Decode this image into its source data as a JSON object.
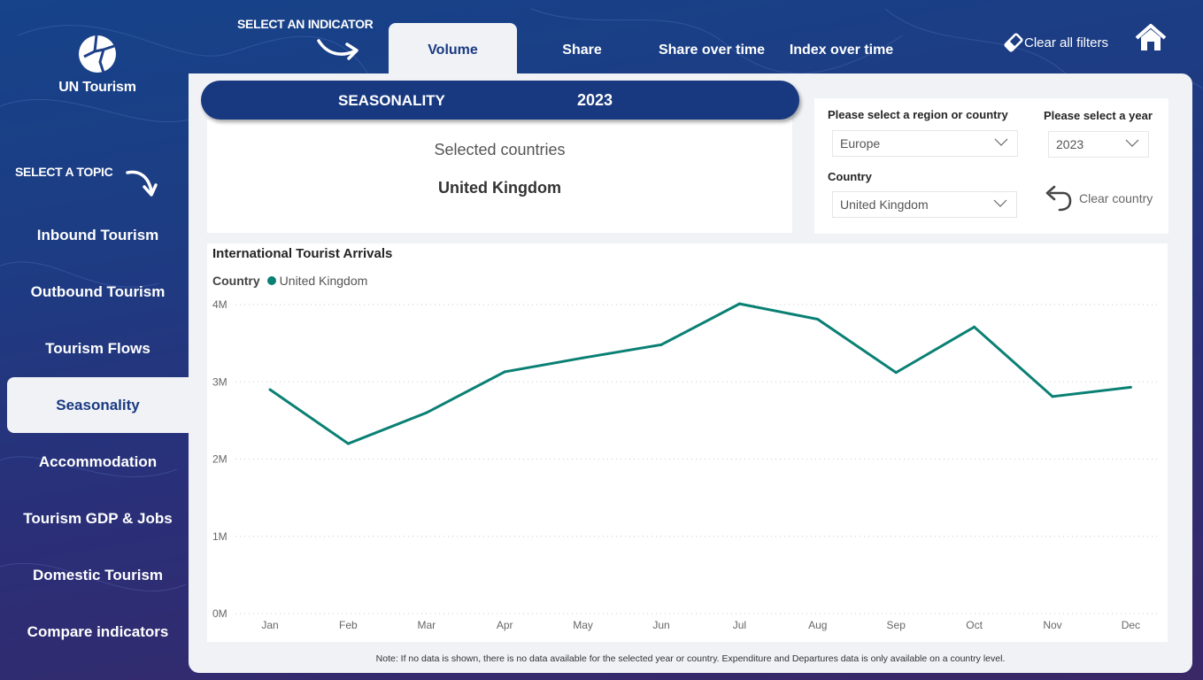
{
  "brand": {
    "name": "UN Tourism"
  },
  "hints": {
    "indicator": "SELECT AN INDICATOR",
    "topic": "SELECT A TOPIC"
  },
  "indicator_tabs": [
    {
      "label": "Volume",
      "active": true
    },
    {
      "label": "Share",
      "active": false
    },
    {
      "label": "Share over time",
      "active": false
    },
    {
      "label": "Index over time",
      "active": false
    }
  ],
  "header_actions": {
    "clear_all_filters": "Clear all filters",
    "home_icon": "home-icon",
    "eraser_icon": "eraser-icon"
  },
  "sidebar": {
    "items": [
      {
        "label": "Inbound Tourism",
        "active": false
      },
      {
        "label": "Outbound Tourism",
        "active": false
      },
      {
        "label": "Tourism Flows",
        "active": false
      },
      {
        "label": "Seasonality",
        "active": true
      },
      {
        "label": "Accommodation",
        "active": false
      },
      {
        "label": "Tourism GDP & Jobs",
        "active": false
      },
      {
        "label": "Domestic Tourism",
        "active": false
      },
      {
        "label": "Compare indicators",
        "active": false
      }
    ]
  },
  "banner": {
    "title": "SEASONALITY",
    "year": "2023"
  },
  "selected": {
    "label": "Selected countries",
    "value": "United Kingdom"
  },
  "filters": {
    "region_label": "Please select a region or country",
    "region_value": "Europe",
    "year_label": "Please select a year",
    "year_value": "2023",
    "country_label": "Country",
    "country_value": "United Kingdom",
    "clear_country": "Clear country"
  },
  "colors": {
    "brand_navy": "#18387f",
    "series": "#0a8074",
    "panel_bg": "#f0f2f6"
  },
  "chart_data": {
    "type": "line",
    "title": "International Tourist Arrivals",
    "legend_title": "Country",
    "legend_position": "top-left",
    "xlabel": "",
    "ylabel": "",
    "categories": [
      "Jan",
      "Feb",
      "Mar",
      "Apr",
      "May",
      "Jun",
      "Jul",
      "Aug",
      "Sep",
      "Oct",
      "Nov",
      "Dec"
    ],
    "series": [
      {
        "name": "United Kingdom",
        "color": "#0a8074",
        "values": [
          2900000,
          2200000,
          2600000,
          3130000,
          3310000,
          3480000,
          4010000,
          3810000,
          3120000,
          3710000,
          2810000,
          2930000
        ]
      }
    ],
    "ylim": [
      0,
      4000000
    ],
    "yticks": [
      0,
      1000000,
      2000000,
      3000000,
      4000000
    ],
    "ytick_labels": [
      "0M",
      "1M",
      "2M",
      "3M",
      "4M"
    ],
    "grid": true
  },
  "note": "Note: If no data is shown, there is no data available for the selected year or country. Expenditure and Departures data is only available on a country level."
}
